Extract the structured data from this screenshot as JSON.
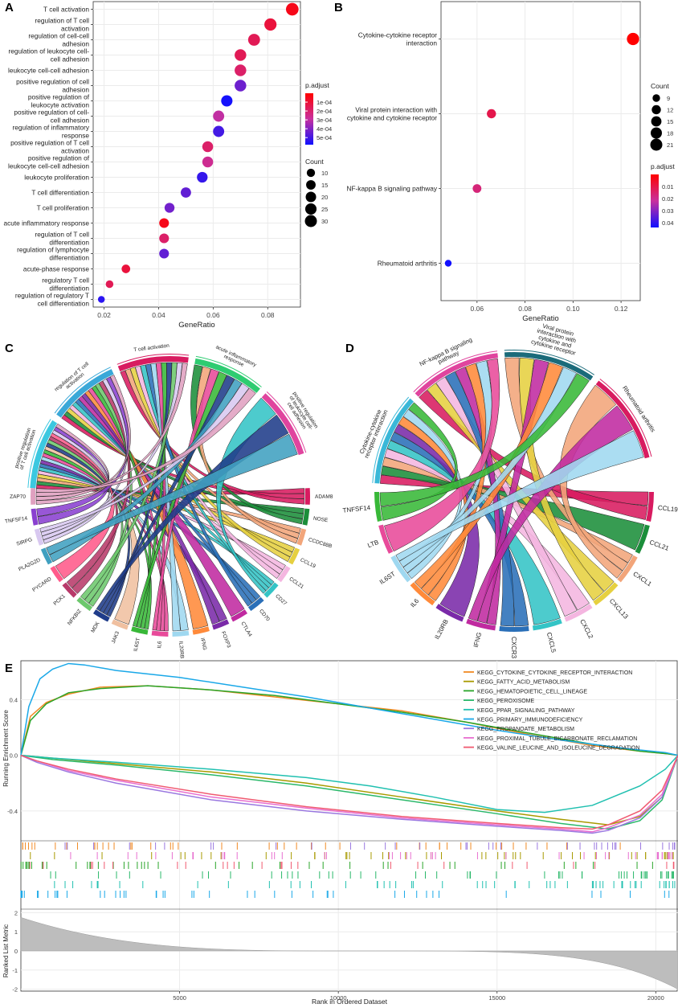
{
  "panels": {
    "a": "A",
    "b": "B",
    "c": "C",
    "d": "D",
    "e": "E"
  },
  "colors": {
    "high": "#ff0000",
    "mid": "#c8309e",
    "low": "#1010ff",
    "grid": "#ebebeb",
    "panel_border": "#333333"
  },
  "chart_data": [
    {
      "id": "A",
      "type": "scatter",
      "subtype": "dotplot",
      "xlabel": "GeneRatio",
      "xlim": [
        0.016,
        0.092
      ],
      "xticks": [
        0.02,
        0.04,
        0.06,
        0.08
      ],
      "categories": [
        {
          "label": [
            "T cell activation"
          ],
          "x": 0.089,
          "count": 34,
          "padj": 2e-05
        },
        {
          "label": [
            "regulation of T cell",
            "activation"
          ],
          "x": 0.081,
          "count": 31,
          "padj": 3e-05
        },
        {
          "label": [
            "regulation of cell-cell",
            "adhesion"
          ],
          "x": 0.075,
          "count": 29,
          "padj": 4e-05
        },
        {
          "label": [
            "regulation of leukocyte cell-",
            "cell adhesion"
          ],
          "x": 0.07,
          "count": 27,
          "padj": 4e-05
        },
        {
          "label": [
            "leukocyte cell-cell adhesion"
          ],
          "x": 0.07,
          "count": 27,
          "padj": 5e-05
        },
        {
          "label": [
            "positive regulation of cell",
            "adhesion"
          ],
          "x": 0.07,
          "count": 27,
          "padj": 0.00023
        },
        {
          "label": [
            "positive regulation of",
            "leukocyte activation"
          ],
          "x": 0.065,
          "count": 25,
          "padj": 0.00055
        },
        {
          "label": [
            "positive regulation of cell-",
            "cell adhesion"
          ],
          "x": 0.062,
          "count": 24,
          "padj": 0.0001
        },
        {
          "label": [
            "regulation of inflammatory",
            "response"
          ],
          "x": 0.062,
          "count": 24,
          "padj": 0.00035
        },
        {
          "label": [
            "positive regulation of T cell",
            "activation"
          ],
          "x": 0.058,
          "count": 22,
          "padj": 5e-05
        },
        {
          "label": [
            "positive regulation of",
            "leukocyte cell-cell adhesion"
          ],
          "x": 0.058,
          "count": 22,
          "padj": 8e-05
        },
        {
          "label": [
            "leukocyte proliferation"
          ],
          "x": 0.056,
          "count": 21,
          "padj": 0.0004
        },
        {
          "label": [
            "T cell differentiation"
          ],
          "x": 0.05,
          "count": 19,
          "padj": 0.00026
        },
        {
          "label": [
            "T cell proliferation"
          ],
          "x": 0.044,
          "count": 17,
          "padj": 0.00022
        },
        {
          "label": [
            "acute inflammatory response"
          ],
          "x": 0.042,
          "count": 16,
          "padj": 2e-05
        },
        {
          "label": [
            "regulation of T cell",
            "differentiation"
          ],
          "x": 0.042,
          "count": 16,
          "padj": 5e-05
        },
        {
          "label": [
            "regulation of lymphocyte",
            "differentiation"
          ],
          "x": 0.042,
          "count": 16,
          "padj": 0.00026
        },
        {
          "label": [
            "acute-phase response"
          ],
          "x": 0.028,
          "count": 11,
          "padj": 3e-05
        },
        {
          "label": [
            "regulatory T cell",
            "differentiation"
          ],
          "x": 0.022,
          "count": 8,
          "padj": 4e-05
        },
        {
          "label": [
            "regulation of regulatory T",
            "cell differentiation"
          ],
          "x": 0.019,
          "count": 6,
          "padj": 0.00045
        }
      ],
      "legend_color": {
        "title": "p.adjust",
        "ticks": [
          "1e-04",
          "2e-04",
          "3e-04",
          "4e-04",
          "5e-04"
        ],
        "tick_values": [
          0.0001,
          0.0002,
          0.0003,
          0.0004,
          0.0005
        ],
        "range": [
          1.5e-05,
          0.00058
        ]
      },
      "legend_size": {
        "title": "Count",
        "values": [
          10,
          15,
          20,
          25,
          30
        ]
      }
    },
    {
      "id": "B",
      "type": "scatter",
      "subtype": "dotplot",
      "xlabel": "GeneRatio",
      "xlim": [
        0.045,
        0.128
      ],
      "xticks": [
        0.06,
        0.08,
        0.1,
        0.12
      ],
      "xticklabels": [
        "0.06",
        "0.08",
        "0.10",
        "0.12"
      ],
      "categories": [
        {
          "label": [
            "Cytokine-cytokine receptor",
            "interaction"
          ],
          "x": 0.125,
          "count": 22,
          "padj": 0.0003
        },
        {
          "label": [
            "Viral protein interaction with",
            "cytokine and cytokine receptor"
          ],
          "x": 0.066,
          "count": 12,
          "padj": 0.001
        },
        {
          "label": [
            "NF-kappa B signaling pathway"
          ],
          "x": 0.06,
          "count": 11,
          "padj": 0.002
        },
        {
          "label": [
            "Rheumatoid arthritis"
          ],
          "x": 0.048,
          "count": 8,
          "padj": 0.043
        }
      ],
      "legend_size": {
        "title": "Count",
        "values": [
          9,
          12,
          15,
          18,
          21
        ]
      },
      "legend_color": {
        "title": "p.adjust",
        "ticks": [
          "0.01",
          "0.02",
          "0.03",
          "0.04"
        ],
        "tick_values": [
          0.01,
          0.02,
          0.03,
          0.04
        ],
        "range": [
          0.0003,
          0.044
        ]
      }
    },
    {
      "id": "C",
      "type": "chord",
      "terms": [
        {
          "label": [
            "positive regulation",
            "of T cell activation"
          ],
          "color": "#3cc8e0"
        },
        {
          "label": [
            "regulation of T cell",
            "activation"
          ],
          "color": "#3aa8d8"
        },
        {
          "label": [
            "T cell activation"
          ],
          "color": "#d81b60"
        },
        {
          "label": [
            "acute inflammatory",
            "response"
          ],
          "color": "#2ecc71"
        },
        {
          "label": [
            "positive regulation",
            "of leukocyte cell-",
            "cell adhesion"
          ],
          "color": "#e0449e"
        }
      ],
      "genes": [
        "ADAM8",
        "NOSE",
        "CCDC88B",
        "CCL19",
        "CCL21",
        "CD27",
        "CD70",
        "CTLA4",
        "FOXP3",
        "IFNG",
        "IL20RB",
        "IL6",
        "IL6ST",
        "JAK3",
        "MDK",
        "NFKBIZ",
        "PCK1",
        "PYCARD",
        "PLA2G2D",
        "SIRPG",
        "TNFSF14",
        "ZAP70"
      ]
    },
    {
      "id": "D",
      "type": "chord",
      "terms": [
        {
          "label": [
            "Cytokine-cytokine",
            "receptor interaction"
          ],
          "color": "#3ab8d8"
        },
        {
          "label": [
            "NF-kappa B signaling",
            "pathway"
          ],
          "color": "#e0449e"
        },
        {
          "label": [
            "Viral protein",
            "interaction with",
            "cytokine and",
            "cytokine receptor"
          ],
          "color": "#1a6b7a"
        },
        {
          "label": [
            "Rheumatoid arthritis"
          ],
          "color": "#d81b60"
        }
      ],
      "genes": [
        "CCL19",
        "CCL21",
        "CXCL1",
        "CXCL13",
        "CXCL2",
        "CXCL5",
        "CXCR3",
        "IFNG",
        "IL20RB",
        "IL6",
        "IL6ST",
        "LTB",
        "TNFSF14"
      ]
    },
    {
      "id": "E",
      "type": "line",
      "subtype": "gsea",
      "ylabel_top": "Running Enrichment Score",
      "ylabel_bottom": "Ranked List Metric",
      "xlabel": "Rank in Ordered Dataset",
      "xlim": [
        0,
        20700
      ],
      "xticks": [
        5000,
        10000,
        15000,
        20000
      ],
      "ylim_top": [
        -0.58,
        0.68
      ],
      "yticks_top": [
        "0.4",
        "0.0",
        "-0.4"
      ],
      "ytick_values_top": [
        0.4,
        0.0,
        -0.4
      ],
      "ylim_bottom": [
        -2.1,
        2.1
      ],
      "yticks_bottom": [
        "2",
        "1",
        "0",
        "-1",
        "-2"
      ],
      "ytick_values_bottom": [
        2,
        1,
        0,
        -1,
        -2
      ],
      "series": [
        {
          "name": "KEGG_CYTOKINE_CYTOKINE_RECEPTOR_INTERACTION",
          "color": "#f08a24",
          "x": [
            0,
            300,
            800,
            1500,
            2500,
            4000,
            6000,
            8000,
            10000,
            12000,
            14000,
            16000,
            18000,
            19500,
            20400,
            20700
          ],
          "y": [
            0,
            0.28,
            0.38,
            0.44,
            0.49,
            0.5,
            0.47,
            0.42,
            0.37,
            0.32,
            0.24,
            0.15,
            0.07,
            0.03,
            0.01,
            0
          ]
        },
        {
          "name": "KEGG_FATTY_ACID_METABOLISM",
          "color": "#a89a00",
          "x": [
            0,
            1000,
            3000,
            6000,
            9000,
            12000,
            15000,
            17000,
            18500,
            19500,
            20200,
            20700
          ],
          "y": [
            0,
            -0.02,
            -0.06,
            -0.12,
            -0.2,
            -0.3,
            -0.4,
            -0.46,
            -0.5,
            -0.44,
            -0.3,
            0
          ]
        },
        {
          "name": "KEGG_HEMATOPOIETIC_CELL_LINEAGE",
          "color": "#2aa52a",
          "x": [
            0,
            300,
            800,
            1500,
            2500,
            4000,
            6000,
            8000,
            10000,
            12000,
            14000,
            16000,
            18000,
            19500,
            20400,
            20700
          ],
          "y": [
            0,
            0.25,
            0.37,
            0.45,
            0.48,
            0.5,
            0.47,
            0.43,
            0.37,
            0.31,
            0.24,
            0.16,
            0.08,
            0.03,
            0.01,
            0
          ]
        },
        {
          "name": "KEGG_PEROXISOME",
          "color": "#2ab86a",
          "x": [
            0,
            1000,
            3000,
            6000,
            9000,
            12000,
            15000,
            17000,
            18500,
            19500,
            20200,
            20700
          ],
          "y": [
            0,
            -0.03,
            -0.07,
            -0.14,
            -0.22,
            -0.32,
            -0.42,
            -0.49,
            -0.53,
            -0.47,
            -0.32,
            0
          ]
        },
        {
          "name": "KEGG_PPAR_SIGNALING_PATHWAY",
          "color": "#20c0b0",
          "x": [
            0,
            1000,
            3000,
            6000,
            9000,
            11000,
            13000,
            15000,
            16500,
            18000,
            19500,
            20300,
            20700
          ],
          "y": [
            0,
            -0.02,
            -0.05,
            -0.1,
            -0.16,
            -0.22,
            -0.3,
            -0.39,
            -0.41,
            -0.36,
            -0.22,
            -0.1,
            0
          ]
        },
        {
          "name": "KEGG_PRIMARY_IMMUNODEFICIENCY",
          "color": "#1aa8e8",
          "x": [
            0,
            250,
            600,
            1000,
            1500,
            2000,
            3000,
            5000,
            7000,
            9000,
            11000,
            13000,
            15000,
            17000,
            19000,
            20300,
            20700
          ],
          "y": [
            0,
            0.35,
            0.55,
            0.62,
            0.66,
            0.65,
            0.61,
            0.56,
            0.49,
            0.42,
            0.34,
            0.26,
            0.18,
            0.11,
            0.05,
            0.02,
            0
          ]
        },
        {
          "name": "KEGG_PROPANOATE_METABOLISM",
          "color": "#9a78e0",
          "x": [
            0,
            500,
            1500,
            3000,
            6000,
            9000,
            12000,
            15000,
            17000,
            18000,
            18500,
            19500,
            20200,
            20700
          ],
          "y": [
            0,
            -0.05,
            -0.12,
            -0.2,
            -0.32,
            -0.4,
            -0.46,
            -0.51,
            -0.54,
            -0.56,
            -0.54,
            -0.45,
            -0.3,
            0
          ]
        },
        {
          "name": "KEGG_PROXIMAL_TUBULE_BICARBONATE_RECLAMATION",
          "color": "#e870d0",
          "x": [
            0,
            500,
            1500,
            3000,
            6000,
            9000,
            12000,
            15000,
            17000,
            18000,
            18500,
            19500,
            20200,
            20700
          ],
          "y": [
            0,
            -0.04,
            -0.11,
            -0.18,
            -0.3,
            -0.38,
            -0.45,
            -0.5,
            -0.53,
            -0.55,
            -0.52,
            -0.43,
            -0.28,
            0
          ]
        },
        {
          "name": "KEGG_VALINE_LEUCINE_AND_ISOLEUCINE_DEGRADATION",
          "color": "#f05a70",
          "x": [
            0,
            500,
            1500,
            3000,
            6000,
            9000,
            12000,
            15000,
            17000,
            18000,
            18500,
            19500,
            20200,
            20700
          ],
          "y": [
            0,
            -0.04,
            -0.1,
            -0.17,
            -0.28,
            -0.37,
            -0.44,
            -0.49,
            -0.52,
            -0.53,
            -0.5,
            -0.4,
            -0.25,
            0
          ]
        }
      ]
    }
  ]
}
